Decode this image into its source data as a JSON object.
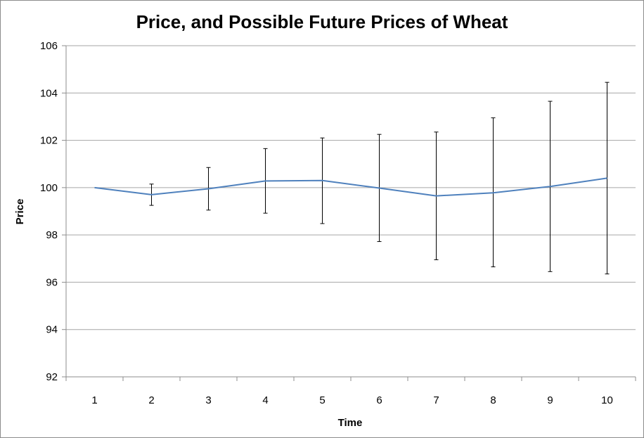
{
  "chart_data": {
    "type": "line",
    "title": "Price, and Possible Future Prices of Wheat",
    "xlabel": "Time",
    "ylabel": "Price",
    "categories": [
      "1",
      "2",
      "3",
      "4",
      "5",
      "6",
      "7",
      "8",
      "9",
      "10"
    ],
    "series": [
      {
        "values": [
          100.0,
          99.7,
          99.95,
          100.28,
          100.3,
          99.98,
          99.65,
          99.78,
          100.05,
          100.4
        ],
        "error_low": [
          100.0,
          99.25,
          99.05,
          98.92,
          98.48,
          97.72,
          96.95,
          96.65,
          96.45,
          96.35
        ],
        "error_high": [
          100.0,
          100.15,
          100.85,
          101.65,
          102.1,
          102.25,
          102.35,
          102.95,
          103.65,
          104.45
        ],
        "color": "#4f81bd"
      }
    ],
    "ylim": [
      92,
      106
    ],
    "yticks": [
      "92",
      "94",
      "96",
      "98",
      "100",
      "102",
      "104",
      "106"
    ],
    "grid": true,
    "legend": "none",
    "line_color": "#4f81bd",
    "error_bar_color": "#000000",
    "grid_color": "#a6a6a6"
  }
}
